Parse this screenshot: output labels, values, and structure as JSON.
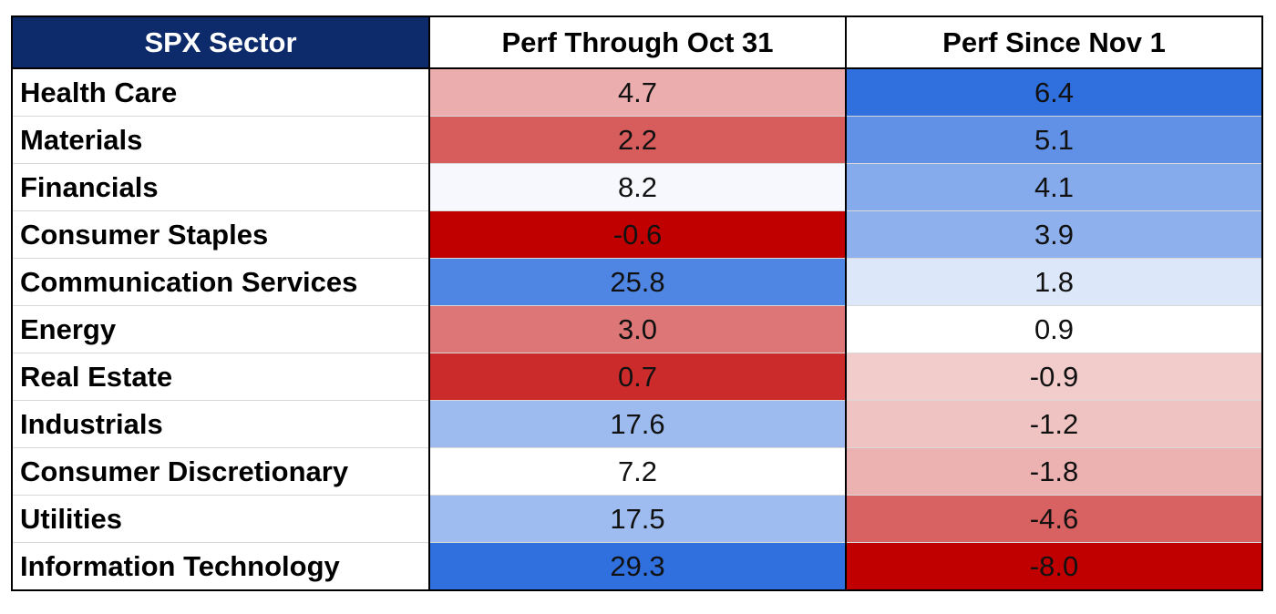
{
  "chart_data": {
    "type": "heatmap",
    "columns": [
      "SPX Sector",
      "Perf Through Oct 31",
      "Perf Since Nov 1"
    ],
    "rows": [
      {
        "sector": "Health Care",
        "perf_through_oct31": "4.7",
        "perf_since_nov1": "6.4"
      },
      {
        "sector": "Materials",
        "perf_through_oct31": "2.2",
        "perf_since_nov1": "5.1"
      },
      {
        "sector": "Financials",
        "perf_through_oct31": "8.2",
        "perf_since_nov1": "4.1"
      },
      {
        "sector": "Consumer Staples",
        "perf_through_oct31": "-0.6",
        "perf_since_nov1": "3.9"
      },
      {
        "sector": "Communication Services",
        "perf_through_oct31": "25.8",
        "perf_since_nov1": "1.8"
      },
      {
        "sector": "Energy",
        "perf_through_oct31": "3.0",
        "perf_since_nov1": "0.9"
      },
      {
        "sector": "Real Estate",
        "perf_through_oct31": "0.7",
        "perf_since_nov1": "-0.9"
      },
      {
        "sector": "Industrials",
        "perf_through_oct31": "17.6",
        "perf_since_nov1": "-1.2"
      },
      {
        "sector": "Consumer Discretionary",
        "perf_through_oct31": "7.2",
        "perf_since_nov1": "-1.8"
      },
      {
        "sector": "Utilities",
        "perf_through_oct31": "17.5",
        "perf_since_nov1": "-4.6"
      },
      {
        "sector": "Information Technology",
        "perf_through_oct31": "29.3",
        "perf_since_nov1": "-8.0"
      }
    ],
    "color_scale": {
      "low": "#c00000",
      "mid": "#ffffff",
      "high": "#2f6fde"
    },
    "header_color": "#0d2a6b"
  }
}
